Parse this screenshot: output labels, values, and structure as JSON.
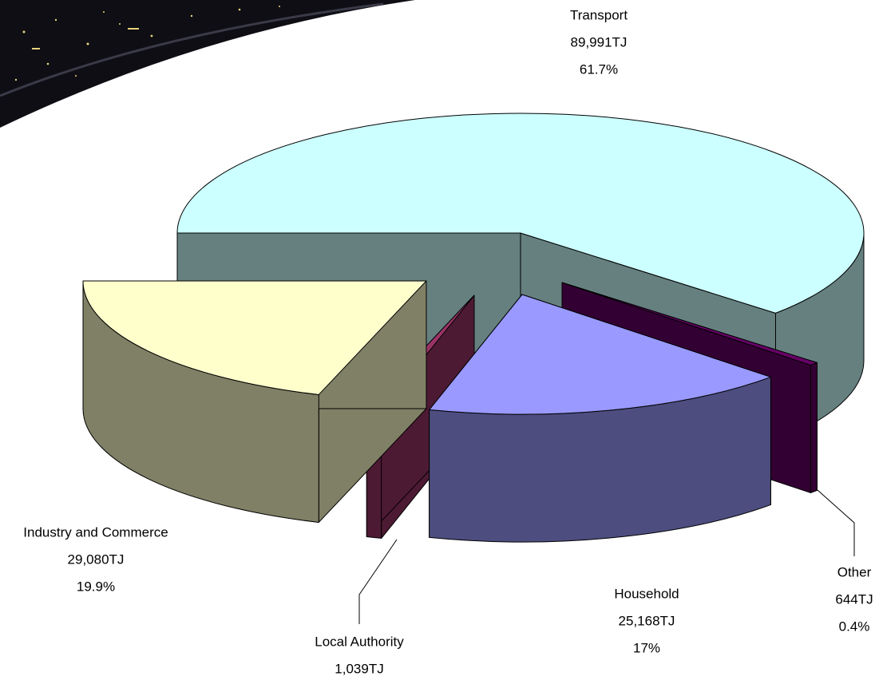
{
  "chart_data": {
    "type": "pie",
    "categories": [
      "Transport",
      "Other",
      "Household",
      "Local Authority",
      "Industry and Commerce"
    ],
    "values": [
      89991,
      644,
      25168,
      1039,
      29080
    ],
    "value_labels": [
      "89,991TJ",
      "644TJ",
      "25,168TJ",
      "1,039TJ",
      "29,080TJ"
    ],
    "percents": [
      61.7,
      0.4,
      17,
      null,
      19.9
    ],
    "percent_labels": [
      "61.7%",
      "0.4%",
      "17%",
      null,
      "19.9%"
    ],
    "colors": [
      "#ccffff",
      "#660066",
      "#9999ff",
      "#993366",
      "#ffffcc"
    ]
  }
}
